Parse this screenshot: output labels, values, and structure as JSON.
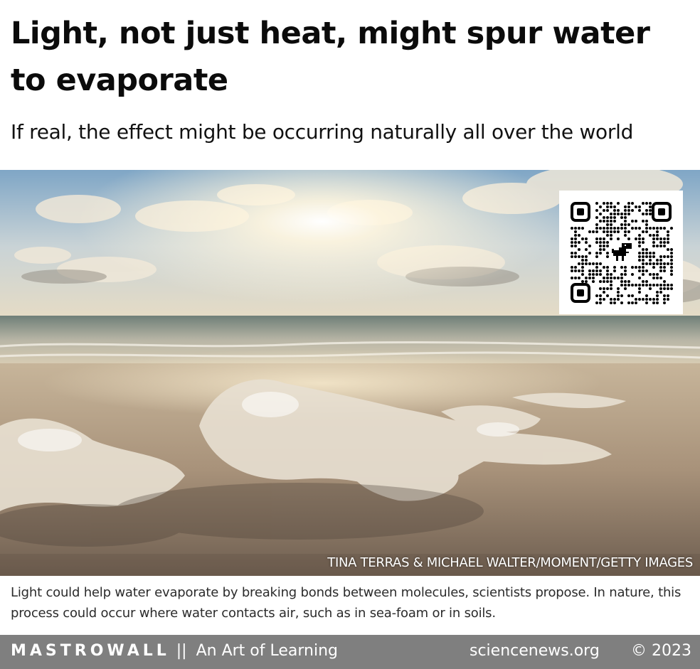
{
  "article": {
    "headline": "Light, not just heat, might spur water to evaporate",
    "subheadline": "If real, the effect might be occurring naturally all over the world",
    "photo_credit": "TINA TERRAS & MICHAEL WALTER/MOMENT/GETTY IMAGES",
    "caption": "Light could help water evaporate by breaking bonds between molecules, scientists propose. In nature, this process could occur where water contacts air, such as in sea-foam or in soils."
  },
  "footer": {
    "brand_name": "MASTROWALL",
    "separator": "||",
    "tagline": "An Art of Learning",
    "site": "sciencenews.org",
    "copyright": "© 2023"
  },
  "colors": {
    "footer_bg": "#7f7f7f",
    "headline": "#0b0b0b",
    "caption": "#2b2b2b"
  },
  "icons": {
    "qr": "qr-code-icon",
    "qr_center": "dinosaur-icon"
  }
}
